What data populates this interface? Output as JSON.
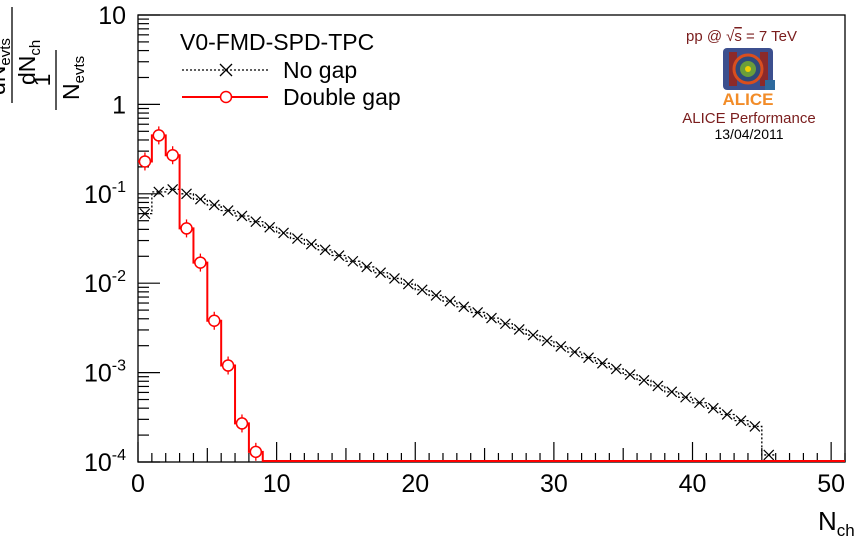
{
  "chart_data": {
    "type": "line",
    "title": "V0-FMD-SPD-TPC",
    "xlabel": "N",
    "xlabel_sub": "ch",
    "ylabel": {
      "prefactor_num": "1",
      "prefactor_den": "N",
      "prefactor_den_sub": "evts",
      "deriv_num": "dN",
      "deriv_num_sub": "evts",
      "deriv_den": "dN",
      "deriv_den_sub": "ch"
    },
    "xlim": [
      0,
      51
    ],
    "ylim": [
      0.0001,
      10
    ],
    "y_scale": "log",
    "grid": false,
    "legend_position": "top-left",
    "x_ticks": [
      0,
      10,
      20,
      30,
      40,
      50
    ],
    "x_tick_labels": [
      "0",
      "10",
      "20",
      "30",
      "40",
      "50"
    ],
    "y_ticks": [
      {
        "value": 0.0001,
        "base": "10",
        "exp": "-4"
      },
      {
        "value": 0.001,
        "base": "10",
        "exp": "-3"
      },
      {
        "value": 0.01,
        "base": "10",
        "exp": "-2"
      },
      {
        "value": 0.1,
        "base": "10",
        "exp": "-1"
      },
      {
        "value": 1,
        "base": "1",
        "exp": ""
      },
      {
        "value": 10,
        "base": "10",
        "exp": ""
      }
    ],
    "series": [
      {
        "name": "No gap",
        "color": "#000000",
        "marker": "x",
        "line_style": "dotted",
        "x": [
          0.5,
          1.5,
          2.5,
          3.5,
          4.5,
          5.5,
          6.5,
          7.5,
          8.5,
          9.5,
          10.5,
          11.5,
          12.5,
          13.5,
          14.5,
          15.5,
          16.5,
          17.5,
          18.5,
          19.5,
          20.5,
          21.5,
          22.5,
          23.5,
          24.5,
          25.5,
          26.5,
          27.5,
          28.5,
          29.5,
          30.5,
          31.5,
          32.5,
          33.5,
          34.5,
          35.5,
          36.5,
          37.5,
          38.5,
          39.5,
          40.5,
          41.5,
          42.5,
          43.5,
          44.5,
          45.5
        ],
        "y": [
          0.06,
          0.105,
          0.112,
          0.1,
          0.087,
          0.075,
          0.065,
          0.0565,
          0.0488,
          0.0422,
          0.0365,
          0.0316,
          0.0273,
          0.0236,
          0.0204,
          0.0176,
          0.0152,
          0.0131,
          0.0113,
          0.00977,
          0.00844,
          0.0073,
          0.0063,
          0.00545,
          0.00471,
          0.00407,
          0.00352,
          0.00304,
          0.00263,
          0.00227,
          0.00196,
          0.0017,
          0.00147,
          0.00127,
          0.0011,
          0.00095,
          0.00082,
          0.00071,
          0.00061,
          0.00053,
          0.00046,
          0.0004,
          0.00034,
          0.00029,
          0.00025,
          0.00012
        ]
      },
      {
        "name": "Double gap",
        "color": "#ff0000",
        "marker": "circle",
        "line_style": "solid",
        "x": [
          0.5,
          1.5,
          2.5,
          3.5,
          4.5,
          5.5,
          6.5,
          7.5,
          8.5
        ],
        "y": [
          0.23,
          0.45,
          0.27,
          0.041,
          0.017,
          0.0038,
          0.0012,
          0.00027,
          0.00013
        ]
      }
    ]
  },
  "logo": {
    "energy_label_prefix": "pp @",
    "energy_label_sqrt": "s",
    "energy_label_suffix": " = 7 TeV",
    "wordmark": "ALICE",
    "performance_label": "ALICE Performance",
    "date": "13/04/2011",
    "text_color": "#7a1d1d",
    "wordmark_color": "#f28c28"
  }
}
